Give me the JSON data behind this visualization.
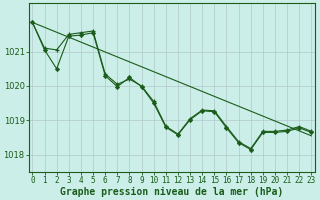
{
  "background_color": "#cceee8",
  "line_color": "#1a5c1a",
  "grid_color": "#b0c8c8",
  "x_ticks": [
    0,
    1,
    2,
    3,
    4,
    5,
    6,
    7,
    8,
    9,
    10,
    11,
    12,
    13,
    14,
    15,
    16,
    17,
    18,
    19,
    20,
    21,
    22,
    23
  ],
  "y_ticks": [
    1018,
    1019,
    1020,
    1021
  ],
  "ylim": [
    1017.5,
    1022.4
  ],
  "xlim": [
    -0.3,
    23.3
  ],
  "xlabel": "Graphe pression niveau de la mer (hPa)",
  "series1_x": [
    0,
    1,
    2,
    3,
    4,
    5,
    6,
    7,
    8,
    9,
    10,
    11,
    12,
    13,
    14,
    15,
    16,
    17,
    18,
    19,
    20,
    21,
    22,
    23
  ],
  "series1_y": [
    1021.85,
    1021.1,
    1021.05,
    1021.5,
    1021.55,
    1021.6,
    1020.35,
    1020.05,
    1020.2,
    1020.0,
    1019.55,
    1018.83,
    1018.6,
    1019.05,
    1019.3,
    1019.28,
    1018.82,
    1018.38,
    1018.18,
    1018.68,
    1018.68,
    1018.72,
    1018.82,
    1018.68
  ],
  "series2_x": [
    0,
    1,
    2,
    3,
    4,
    5,
    6,
    7,
    8,
    9,
    10,
    11,
    12,
    13,
    14,
    15,
    16,
    17,
    18,
    19,
    20,
    21,
    22,
    23
  ],
  "series2_y": [
    1021.85,
    1021.05,
    1020.5,
    1021.45,
    1021.48,
    1021.55,
    1020.3,
    1019.98,
    1020.25,
    1019.98,
    1019.5,
    1018.8,
    1018.58,
    1019.02,
    1019.28,
    1019.25,
    1018.78,
    1018.35,
    1018.15,
    1018.65,
    1018.65,
    1018.68,
    1018.78,
    1018.65
  ],
  "trend_x": [
    0,
    23
  ],
  "trend_y": [
    1021.85,
    1018.55
  ],
  "title_fontsize": 7,
  "tick_fontsize": 5.5
}
